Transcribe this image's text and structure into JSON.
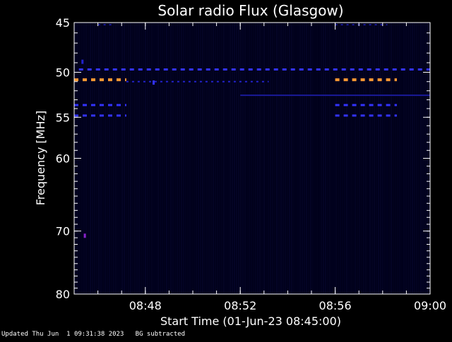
{
  "chart_data": {
    "type": "heatmap",
    "title": "Solar radio Flux (Glasgow)",
    "ylabel": "Frequency [MHz]",
    "xlabel": "Start Time (01-Jun-23 08:45:00)",
    "x_unit": "minutes after 08:45:00",
    "xlim": [
      0,
      15
    ],
    "ylim": [
      45,
      80
    ],
    "y_scale": "log",
    "y_inverted": true,
    "x_ticks": [
      {
        "value": 3,
        "label": "08:48"
      },
      {
        "value": 7,
        "label": "08:52"
      },
      {
        "value": 11,
        "label": "08:56"
      },
      {
        "value": 15,
        "label": "09:00"
      }
    ],
    "y_ticks": [
      {
        "value": 45,
        "label": "45"
      },
      {
        "value": 50,
        "label": "50"
      },
      {
        "value": 55,
        "label": "55"
      },
      {
        "value": 60,
        "label": "60"
      },
      {
        "value": 70,
        "label": "70"
      },
      {
        "value": 80,
        "label": "80"
      }
    ],
    "features": [
      {
        "freq": 49.7,
        "t_start": 0.2,
        "t_end": 15.0,
        "intensity": "medium",
        "color": "#3333ff",
        "style": "dashed"
      },
      {
        "freq": 50.8,
        "t_start": 0.0,
        "t_end": 2.2,
        "intensity": "high",
        "color": "#ff9933",
        "style": "dashed"
      },
      {
        "freq": 50.8,
        "t_start": 11.0,
        "t_end": 13.6,
        "intensity": "high",
        "color": "#ff9933",
        "style": "dashed"
      },
      {
        "freq": 51.0,
        "t_start": 2.2,
        "t_end": 8.2,
        "intensity": "low",
        "color": "#2222cc",
        "style": "dotted"
      },
      {
        "freq": 52.5,
        "t_start": 7.0,
        "t_end": 15.0,
        "intensity": "low",
        "color": "#1a1a99",
        "style": "solid"
      },
      {
        "freq": 53.6,
        "t_start": 0.0,
        "t_end": 2.2,
        "intensity": "medium",
        "color": "#3333ff",
        "style": "dashed"
      },
      {
        "freq": 53.6,
        "t_start": 11.0,
        "t_end": 13.6,
        "intensity": "medium",
        "color": "#3333ff",
        "style": "dashed"
      },
      {
        "freq": 54.8,
        "t_start": 0.0,
        "t_end": 2.2,
        "intensity": "medium",
        "color": "#3333ff",
        "style": "dashed"
      },
      {
        "freq": 54.8,
        "t_start": 11.0,
        "t_end": 13.6,
        "intensity": "medium",
        "color": "#3333ff",
        "style": "dashed"
      },
      {
        "freq": 45.2,
        "t_start": 1.0,
        "t_end": 1.6,
        "intensity": "low",
        "color": "#1a1a99",
        "style": "dotted"
      },
      {
        "freq": 45.2,
        "t_start": 11.0,
        "t_end": 13.2,
        "intensity": "low",
        "color": "#1a1a99",
        "style": "dotted"
      }
    ],
    "spots": [
      {
        "freq": 70.7,
        "t": 0.45,
        "color": "#8822cc"
      },
      {
        "freq": 51.1,
        "t": 3.35,
        "color": "#3333ff"
      },
      {
        "freq": 48.9,
        "t": 0.35,
        "color": "#2222cc"
      }
    ],
    "colors": {
      "background": "#000000",
      "plot_bg": "#00001a",
      "axes": "#ffffff",
      "text": "#ffffff"
    }
  },
  "footer": {
    "updated": "Updated Thu Jun  1 09:31:38 2023",
    "note": "BG subtracted"
  }
}
